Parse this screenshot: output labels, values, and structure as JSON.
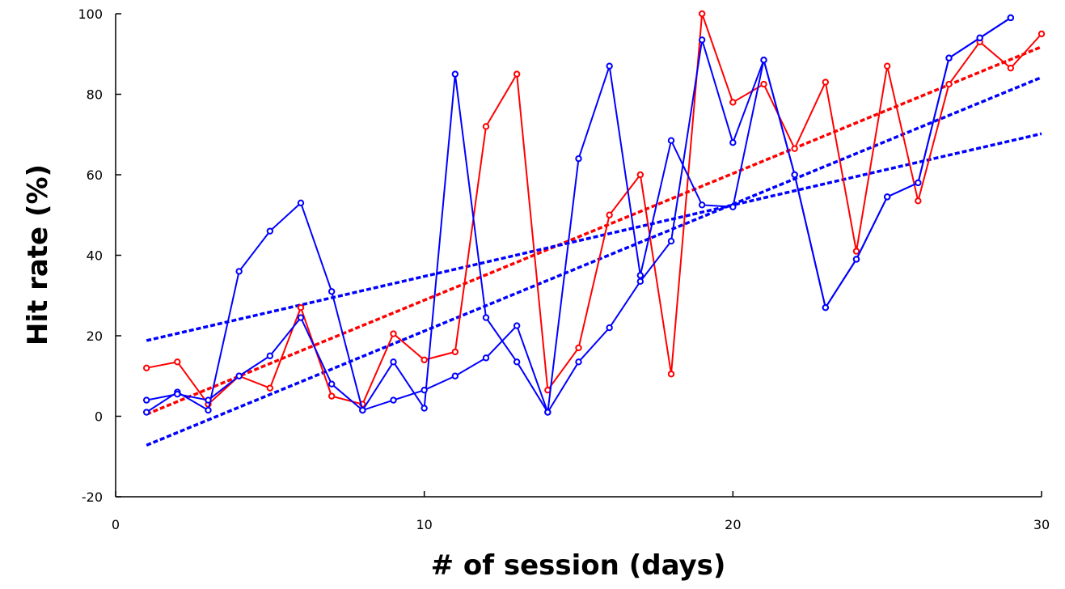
{
  "chart_data": {
    "type": "line",
    "xlabel": "# of session (days)",
    "ylabel": "Hit rate (%)",
    "xlim": [
      0,
      30
    ],
    "ylim": [
      -20,
      100
    ],
    "xticks": [
      0,
      10,
      20,
      30
    ],
    "yticks": [
      -20,
      0,
      20,
      40,
      60,
      80,
      100
    ],
    "grid": false,
    "legend": "none",
    "series": [
      {
        "color": "#ff0000",
        "x": [
          1,
          2,
          3,
          4,
          5,
          6,
          7,
          8,
          9,
          10,
          11,
          12,
          13,
          14,
          15,
          16,
          17,
          18,
          19,
          20,
          21,
          22,
          23,
          24,
          25,
          26,
          27,
          28,
          29,
          30
        ],
        "y": [
          12,
          13.5,
          3,
          10,
          7,
          27,
          5,
          3,
          20.5,
          14,
          16,
          72,
          85,
          6.5,
          17,
          50,
          60,
          10.5,
          100,
          78,
          82.5,
          66.5,
          83,
          41,
          87,
          53.5,
          82.5,
          93,
          86.5,
          95
        ]
      },
      {
        "color": "#0000ff",
        "x": [
          1,
          2,
          3,
          4,
          5,
          6,
          7,
          8,
          9,
          10,
          11,
          12,
          13,
          14,
          15,
          16,
          17,
          18,
          19,
          20,
          21,
          22,
          23,
          24,
          25,
          26,
          27,
          28,
          29
        ],
        "y": [
          1,
          6,
          1.5,
          36,
          46,
          53,
          31,
          1.5,
          13.5,
          2,
          85,
          24.5,
          13.5,
          1,
          64,
          87,
          35,
          68.5,
          52.5,
          52,
          88.5,
          60,
          27,
          39,
          54.5,
          58,
          89,
          94,
          99
        ]
      },
      {
        "color": "#0000ff",
        "x": [
          1,
          2,
          3,
          4,
          5,
          6,
          7,
          8,
          9,
          10,
          11,
          12,
          13,
          14,
          15,
          16,
          17,
          18,
          19,
          20,
          21,
          22,
          23,
          24,
          25,
          26,
          27,
          28,
          29
        ],
        "y": [
          4,
          5.5,
          4,
          10,
          15,
          24.5,
          8,
          1.5,
          4,
          6.5,
          10,
          14.5,
          22.5,
          1,
          13.5,
          22,
          33.5,
          43.5,
          93.5,
          68,
          88.5,
          60,
          27,
          39,
          54.5,
          58,
          89,
          94,
          99
        ]
      }
    ],
    "trendlines": [
      {
        "color": "#ff0000",
        "x": [
          1,
          30
        ],
        "y": [
          0.5,
          91.8
        ]
      },
      {
        "color": "#0000ff",
        "x": [
          1,
          30
        ],
        "y": [
          18.8,
          70.2
        ]
      },
      {
        "color": "#0000ff",
        "x": [
          1,
          30
        ],
        "y": [
          -7.2,
          84.2
        ]
      }
    ]
  }
}
